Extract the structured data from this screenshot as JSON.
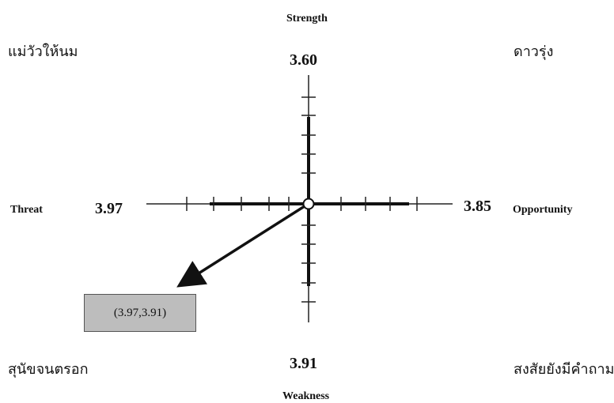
{
  "axes": {
    "top": {
      "name": "Strength",
      "value": "3.60"
    },
    "bottom": {
      "name": "Weakness",
      "value": "3.91"
    },
    "left": {
      "name": "Threat",
      "value": "3.97"
    },
    "right": {
      "name": "Opportunity",
      "value": "3.85"
    }
  },
  "quadrants": {
    "top_left": "แม่วัวให้นม",
    "top_right": "ดาวรุ่ง",
    "bottom_left": "สุนัขจนตรอก",
    "bottom_right": "สงสัยยังมีคำถาม"
  },
  "result_point": {
    "label": "(3.97,3.91)",
    "x": 3.97,
    "y": 3.91
  }
}
